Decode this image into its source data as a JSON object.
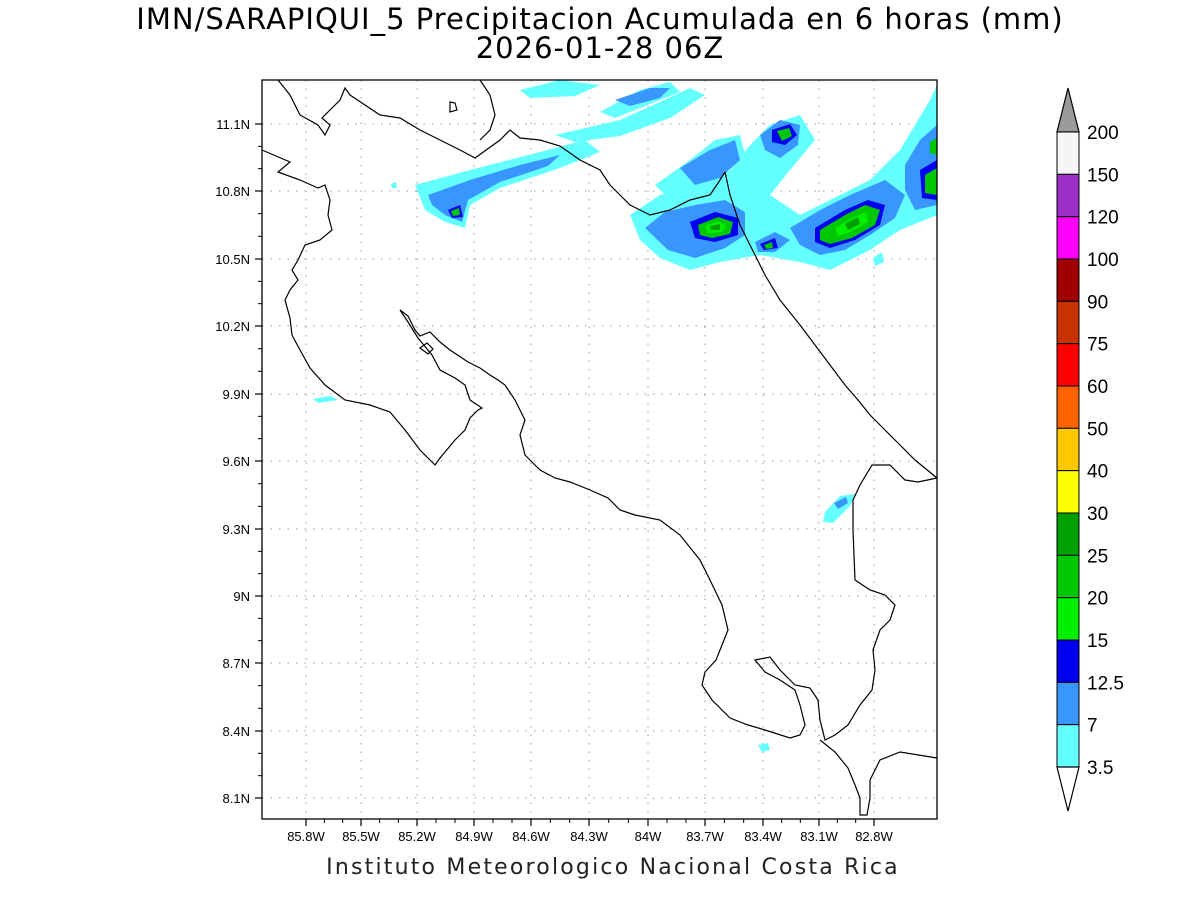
{
  "header": {
    "title": "IMN/SARAPIQUI_5 Precipitacion Acumulada en 6 horas (mm)",
    "subtitle": "2026-01-28 06Z"
  },
  "footer": {
    "credit": "Instituto Meteorologico Nacional Costa Rica"
  },
  "map": {
    "lat_ticks": [
      "11.1N",
      "10.8N",
      "10.5N",
      "10.2N",
      "9.9N",
      "9.6N",
      "9.3N",
      "9N",
      "8.7N",
      "8.4N",
      "8.1N"
    ],
    "lon_ticks": [
      "85.8W",
      "85.5W",
      "85.2W",
      "84.9W",
      "84.6W",
      "84.3W",
      "84W",
      "83.7W",
      "83.4W",
      "83.1W",
      "82.8W"
    ],
    "grid": true,
    "coastline_color": "#000000"
  },
  "colorbar": {
    "labels": [
      "200",
      "150",
      "120",
      "100",
      "90",
      "75",
      "60",
      "50",
      "40",
      "30",
      "25",
      "20",
      "15",
      "12.5",
      "7",
      "3.5"
    ],
    "colors": [
      "#f5f5f5",
      "#9a30c8",
      "#ff00ff",
      "#a00000",
      "#c83200",
      "#ff0000",
      "#ff6400",
      "#ffc800",
      "#ffff00",
      "#00a000",
      "#00c800",
      "#00f000",
      "#0000f0",
      "#3a96ff",
      "#64ffff"
    ],
    "top_arrow_color": "#9a9a9a",
    "bottom_arrow_color": "#ffffff"
  }
}
